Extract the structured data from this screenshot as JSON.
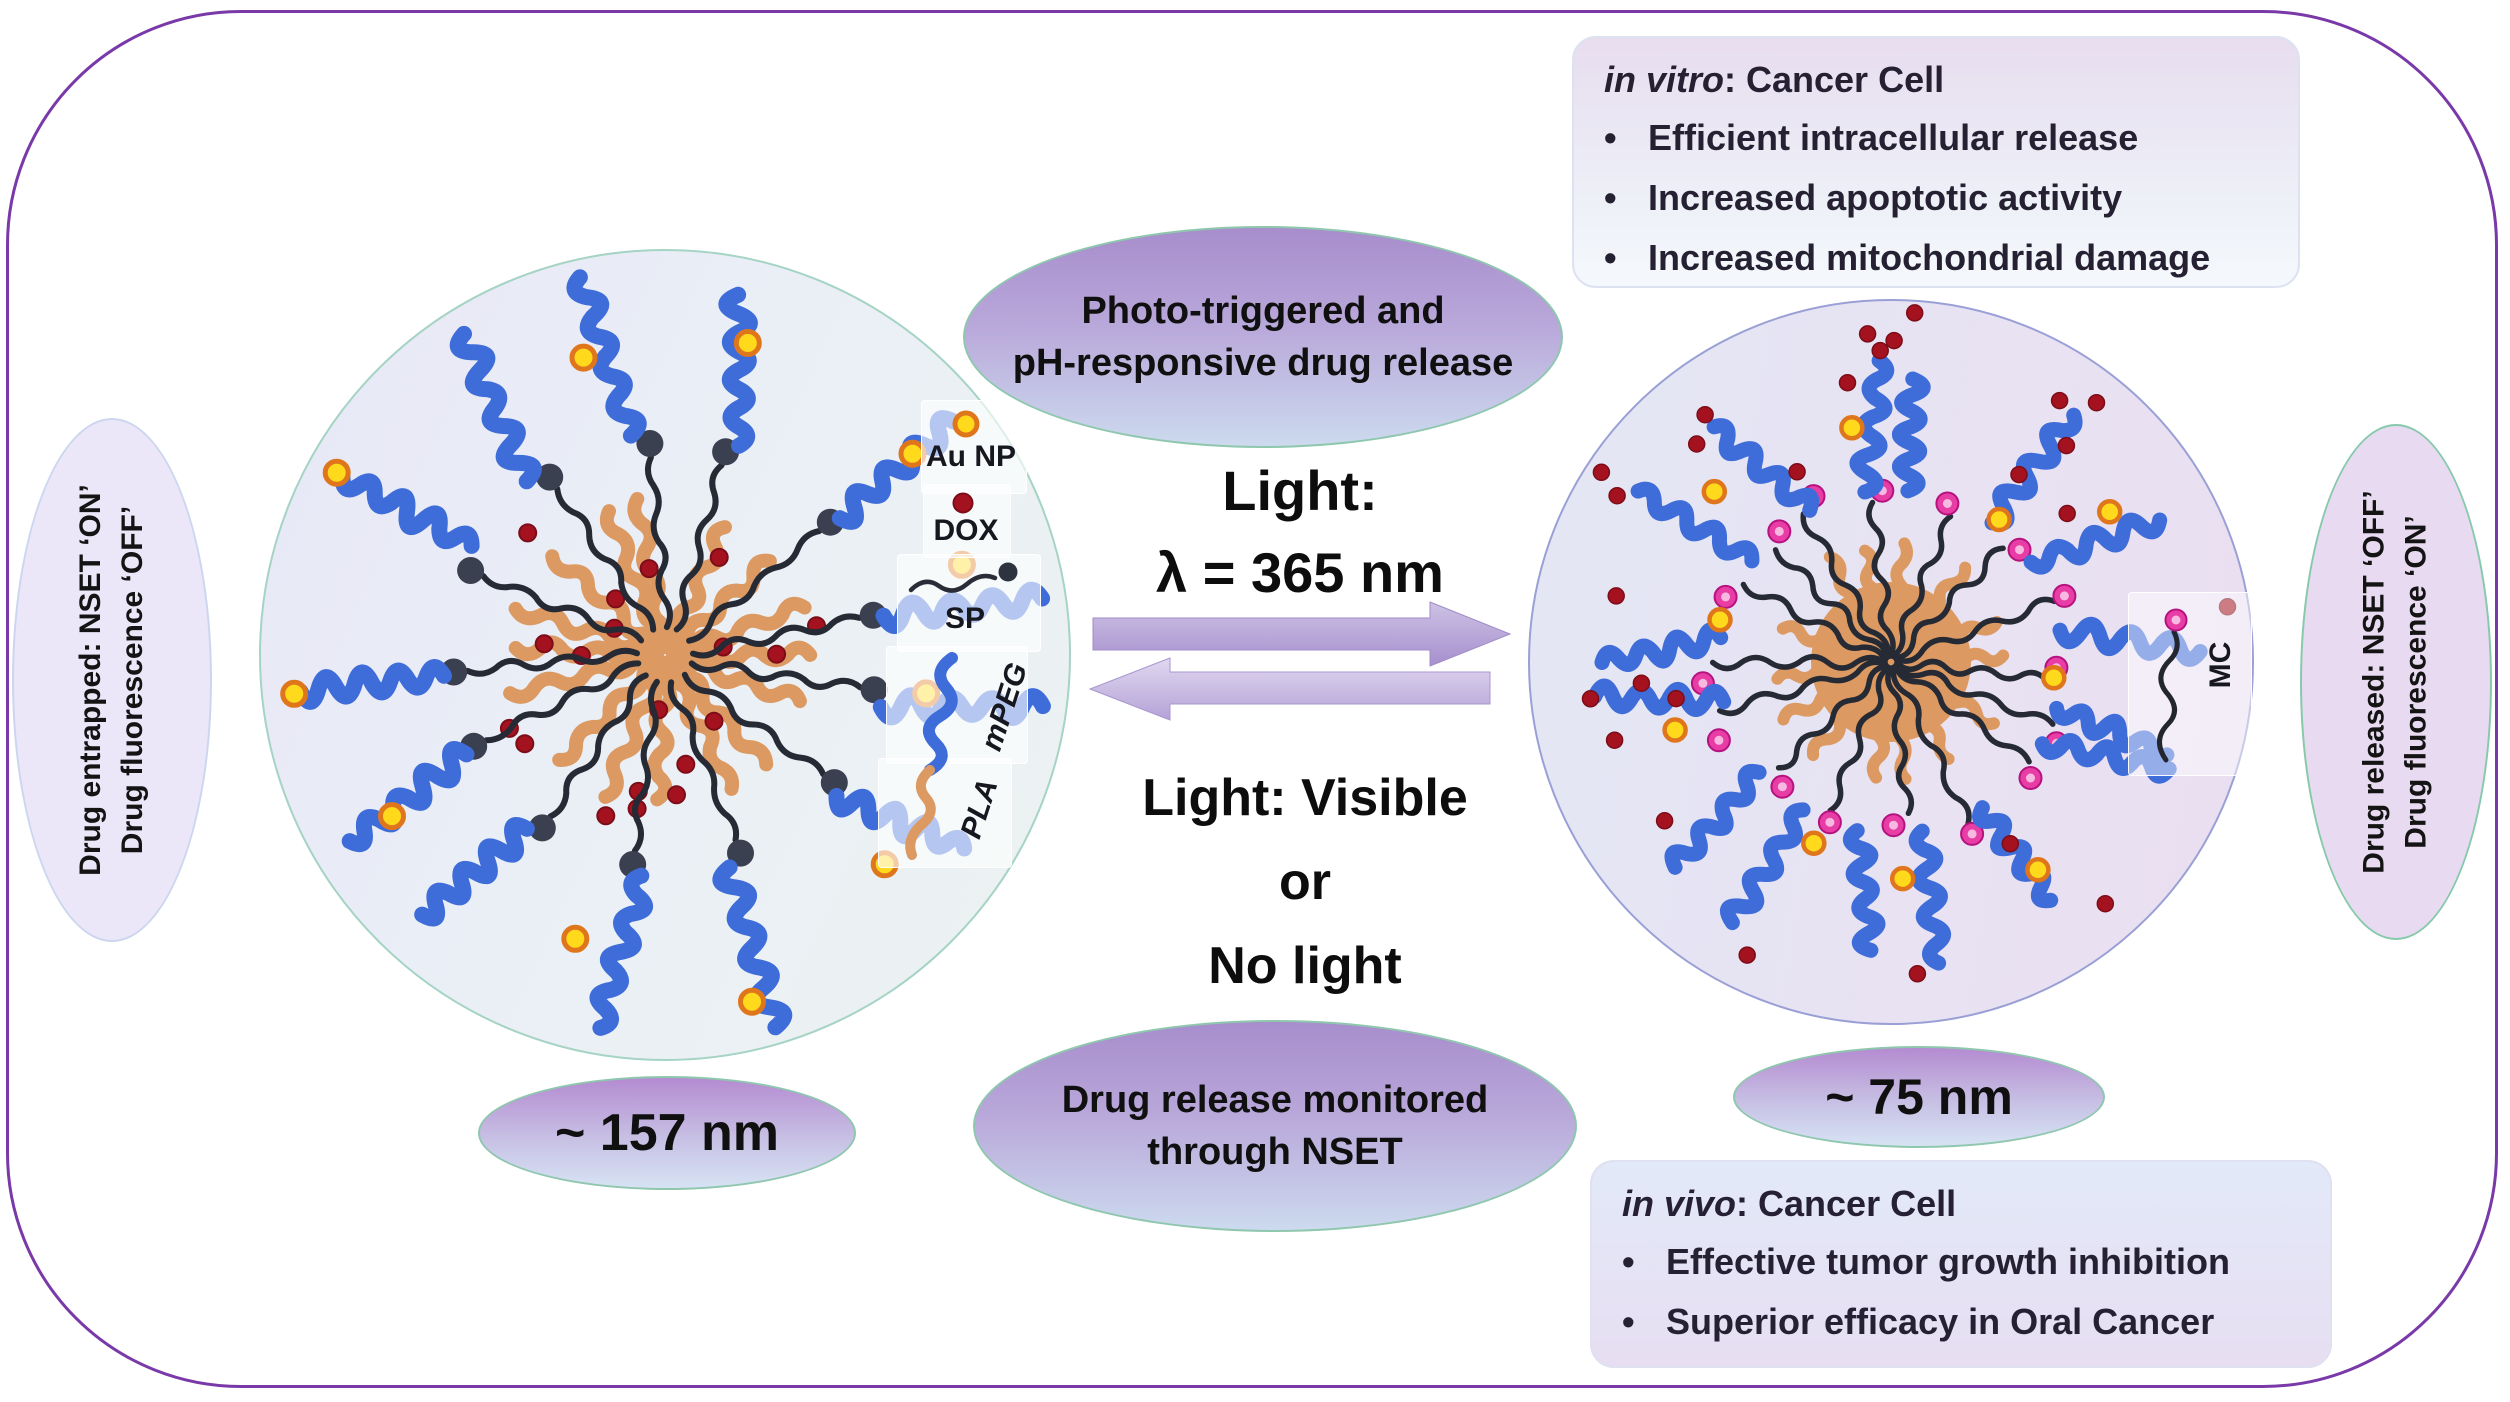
{
  "ui": {
    "bullet": "•"
  },
  "left_panel": {
    "state_line1": "Drug entrapped: NSET ‘ON’",
    "state_line2": "Drug fluorescence ‘OFF’",
    "size_label": "~ 157 nm"
  },
  "right_panel": {
    "state_line1": "Drug released: NSET ‘OFF’",
    "state_line2": "Drug fluorescence ‘ON’",
    "size_label": "~ 75 nm"
  },
  "legend": {
    "au_np": "Au NP",
    "dox": "DOX",
    "sp": "SP",
    "mpeg": "mPEG",
    "pla": "PLA",
    "mc": "MC"
  },
  "center": {
    "top_ellipse_line1": "Photo-triggered and",
    "top_ellipse_line2": "pH-responsive drug release",
    "forward_line1": "Light:",
    "forward_line2": "λ = 365 nm",
    "reverse_line1": "Light: Visible",
    "reverse_line2": "or",
    "reverse_line3": "No light",
    "bottom_ellipse_line1": "Drug release monitored",
    "bottom_ellipse_line2": "through NSET"
  },
  "in_vitro": {
    "title_italic": "in vitro",
    "title_rest": ": Cancer Cell",
    "bullets": [
      "Efficient intracellular release",
      "Increased apoptotic activity",
      "Increased mitochondrial damage"
    ]
  },
  "in_vivo": {
    "title_italic": "in vivo",
    "title_rest": ": Cancer Cell",
    "bullets": [
      "Effective tumor growth inhibition",
      "Superior efficacy in Oral Cancer"
    ]
  },
  "colors": {
    "border_purple": "#7a39a8",
    "chain_blue": "#3e6cd9",
    "chain_orange": "#dc9a62",
    "chain_black": "#262a34",
    "sp_head": "#3a4050",
    "dox_red": "#a5121f",
    "dox_red_dark": "#7c0d18",
    "aunp_yellow": "#ffd91c",
    "aunp_ring": "#e0761c",
    "mc_pink": "#e83da5",
    "mc_pink_dark": "#b51280",
    "mc_pink_light": "#f7b9e2",
    "arrow_fwd_top": "#cdc2e5",
    "arrow_fwd_bottom": "#a78fcd",
    "arrow_rev_top": "#e0d8f0",
    "arrow_rev_bottom": "#b4a2d7"
  }
}
